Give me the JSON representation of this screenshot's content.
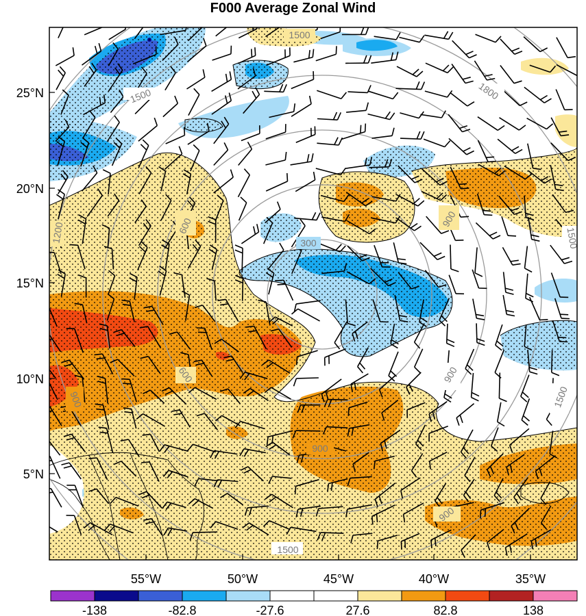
{
  "chart_data": {
    "type": "heatmap",
    "title": "F000 Average Zonal Wind",
    "x_tick_labels": [
      "55°W",
      "50°W",
      "45°W",
      "40°W",
      "35°W"
    ],
    "y_tick_labels": [
      "25°N",
      "20°N",
      "15°N",
      "10°N",
      "5°N"
    ],
    "colorbar": {
      "labels": [
        "-138",
        "-82.8",
        "-27.6",
        "27.6",
        "82.8",
        "138"
      ],
      "colors": [
        "#9b33cc",
        "#0a0a8c",
        "#3a5fd6",
        "#1aaaf0",
        "#a9dcf7",
        "#ffffff",
        "#ffffff",
        "#fbe79a",
        "#f29a12",
        "#f24a12",
        "#b22222",
        "#f47fb6"
      ]
    },
    "contour_labels": [
      "300",
      "600",
      "900",
      "1200",
      "1500",
      "1500",
      "1500",
      "1500",
      "1500",
      "1800",
      "900",
      "900",
      "900",
      "900",
      "600"
    ],
    "features": {
      "wind_barbs": true,
      "stippling": true,
      "coastlines": true
    }
  }
}
